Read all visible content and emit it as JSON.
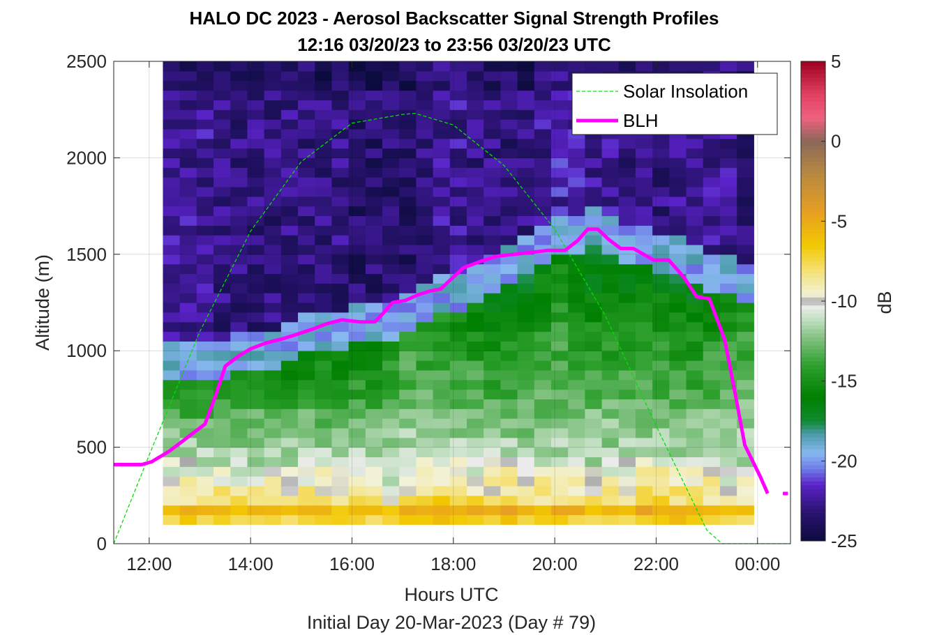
{
  "chart_data": {
    "type": "heatmap",
    "title": "HALO DC 2023 - Aerosol Backscatter Signal Strength Profiles",
    "subtitle": "12:16 03/20/23 to 23:56 03/20/23  UTC",
    "xlabel": "Hours UTC",
    "xlabel_note": "Initial Day 20-Mar-2023 (Day # 79)",
    "ylabel": "Altitude (m)",
    "colorbar_label": "dB",
    "x_axis": {
      "unit": "hours UTC",
      "range": [
        11.3,
        24.65
      ],
      "ticks": [
        12,
        14,
        16,
        18,
        20,
        22,
        24
      ],
      "tick_labels": [
        "12:00",
        "14:00",
        "16:00",
        "18:00",
        "20:00",
        "22:00",
        "00:00"
      ]
    },
    "y_axis": {
      "range": [
        0,
        2500
      ],
      "ticks": [
        0,
        500,
        1000,
        1500,
        2000,
        2500
      ],
      "tick_labels": [
        "0",
        "500",
        "1000",
        "1500",
        "2000",
        "2500"
      ]
    },
    "colorbar": {
      "range": [
        -25,
        5
      ],
      "ticks": [
        -25,
        -20,
        -15,
        -10,
        -5,
        0,
        5
      ],
      "tick_labels": [
        "-25",
        "-20",
        "-15",
        "-10",
        "-5",
        "0",
        "5"
      ],
      "colormap": [
        {
          "v": -25,
          "color": "#0b0b3d"
        },
        {
          "v": -23,
          "color": "#2e1478"
        },
        {
          "v": -21.5,
          "color": "#5a22c8"
        },
        {
          "v": -20.5,
          "color": "#6e7ae8"
        },
        {
          "v": -19.5,
          "color": "#88b8f0"
        },
        {
          "v": -18.3,
          "color": "#4a9aa8"
        },
        {
          "v": -17.5,
          "color": "#108a30"
        },
        {
          "v": -16,
          "color": "#008000"
        },
        {
          "v": -14,
          "color": "#2ea02e"
        },
        {
          "v": -12.5,
          "color": "#78bd78"
        },
        {
          "v": -11,
          "color": "#c8e2c8"
        },
        {
          "v": -10.3,
          "color": "#ececec"
        },
        {
          "v": -10,
          "color": "#a8a8a8"
        },
        {
          "v": -9.6,
          "color": "#f2f2d8"
        },
        {
          "v": -8,
          "color": "#f5e070"
        },
        {
          "v": -6.5,
          "color": "#f2c800"
        },
        {
          "v": -4.5,
          "color": "#e8a020"
        },
        {
          "v": -2,
          "color": "#b88840"
        },
        {
          "v": 0,
          "color": "#8a6858"
        },
        {
          "v": 1.5,
          "color": "#f06080"
        },
        {
          "v": 3,
          "color": "#e04060"
        },
        {
          "v": 5,
          "color": "#a00020"
        }
      ]
    },
    "grid": true,
    "legend": {
      "position": "top-right",
      "entries": [
        {
          "label": "Solar Insolation",
          "color": "#00ff00",
          "style": "dashed"
        },
        {
          "label": "BLH",
          "color": "#ff00ff",
          "style": "solid"
        }
      ]
    },
    "heatmap": {
      "x_start_hours": 12.27,
      "x_step_hours": 0.333,
      "columns": 35,
      "y_start_m": 100,
      "y_step_m": 50,
      "rows": 48,
      "values_note": "signal strength in dB, summarized per column as surface value, mid-layer value, boundary-layer top and free-troposphere value",
      "column_profiles": [
        {
          "surface": -6.5,
          "mid": -13.5,
          "top_m": 920,
          "free": -22.5
        },
        {
          "surface": -6.5,
          "mid": -13.5,
          "top_m": 920,
          "free": -22.5
        },
        {
          "surface": -6.5,
          "mid": -14,
          "top_m": 920,
          "free": -22.5
        },
        {
          "surface": -6.5,
          "mid": -14,
          "top_m": 920,
          "free": -23
        },
        {
          "surface": -7,
          "mid": -14,
          "top_m": 1000,
          "free": -23
        },
        {
          "surface": -7,
          "mid": -14,
          "top_m": 1000,
          "free": -23
        },
        {
          "surface": -7,
          "mid": -14.5,
          "top_m": 1000,
          "free": -23
        },
        {
          "surface": -7,
          "mid": -14.5,
          "top_m": 1050,
          "free": -23
        },
        {
          "surface": -6.5,
          "mid": -14.5,
          "top_m": 1100,
          "free": -23
        },
        {
          "surface": -6.5,
          "mid": -14.5,
          "top_m": 1100,
          "free": -23
        },
        {
          "surface": -7,
          "mid": -15,
          "top_m": 1100,
          "free": -23
        },
        {
          "surface": -7,
          "mid": -15,
          "top_m": 1150,
          "free": -23.5
        },
        {
          "surface": -7,
          "mid": -15,
          "top_m": 1150,
          "free": -23.5
        },
        {
          "surface": -7.5,
          "mid": -14,
          "top_m": 1150,
          "free": -23.5
        },
        {
          "surface": -6.5,
          "mid": -13,
          "top_m": 1200,
          "free": -23.5
        },
        {
          "surface": -6,
          "mid": -14,
          "top_m": 1250,
          "free": -23
        },
        {
          "surface": -6,
          "mid": -13.5,
          "top_m": 1300,
          "free": -22.5
        },
        {
          "surface": -6,
          "mid": -14,
          "top_m": 1300,
          "free": -22.5
        },
        {
          "surface": -6.5,
          "mid": -14.5,
          "top_m": 1350,
          "free": -23
        },
        {
          "surface": -6.5,
          "mid": -15.5,
          "top_m": 1400,
          "free": -23
        },
        {
          "surface": -6,
          "mid": -15.5,
          "top_m": 1450,
          "free": -23
        },
        {
          "surface": -7,
          "mid": -16,
          "top_m": 1500,
          "free": -23
        },
        {
          "surface": -6.5,
          "mid": -15,
          "top_m": 1550,
          "free": -22.5
        },
        {
          "surface": -6,
          "mid": -14.5,
          "top_m": 1600,
          "free": -22
        },
        {
          "surface": -6.5,
          "mid": -15.5,
          "top_m": 1600,
          "free": -22
        },
        {
          "surface": -7,
          "mid": -16,
          "top_m": 1650,
          "free": -22.5
        },
        {
          "surface": -7,
          "mid": -15.5,
          "top_m": 1600,
          "free": -22.5
        },
        {
          "surface": -6.5,
          "mid": -15.5,
          "top_m": 1550,
          "free": -23
        },
        {
          "surface": -6,
          "mid": -15,
          "top_m": 1550,
          "free": -23
        },
        {
          "surface": -6,
          "mid": -15,
          "top_m": 1500,
          "free": -23
        },
        {
          "surface": -6,
          "mid": -15.5,
          "top_m": 1500,
          "free": -22.5
        },
        {
          "surface": -6.5,
          "mid": -15.5,
          "top_m": 1450,
          "free": -22.5
        },
        {
          "surface": -6.5,
          "mid": -14.5,
          "top_m": 1400,
          "free": -22.5
        },
        {
          "surface": -7,
          "mid": -14,
          "top_m": 1400,
          "free": -22.5
        },
        {
          "surface": -7,
          "mid": -13.5,
          "top_m": 1350,
          "free": -23
        }
      ]
    },
    "series": [
      {
        "name": "BLH",
        "x": [
          11.3,
          11.85,
          12.05,
          12.4,
          12.75,
          13.1,
          13.3,
          13.5,
          13.75,
          14,
          14.3,
          14.6,
          14.85,
          15.2,
          15.5,
          15.8,
          16.15,
          16.45,
          16.6,
          16.8,
          17.05,
          17.3,
          17.55,
          17.75,
          17.95,
          18.2,
          18.5,
          18.85,
          19.2,
          19.55,
          19.85,
          20.2,
          20.45,
          20.65,
          20.85,
          21.05,
          21.3,
          21.55,
          21.95,
          22.25,
          22.55,
          22.8,
          23.05,
          23.35,
          23.55,
          23.75,
          24.05,
          24.2,
          24.3,
          24.5,
          24.6
        ],
        "y": [
          410,
          410,
          425,
          480,
          550,
          620,
          760,
          920,
          970,
          1010,
          1040,
          1060,
          1080,
          1110,
          1140,
          1160,
          1150,
          1150,
          1190,
          1250,
          1260,
          1290,
          1310,
          1320,
          1370,
          1430,
          1460,
          1490,
          1500,
          1510,
          1520,
          1520,
          1570,
          1630,
          1630,
          1580,
          1530,
          1530,
          1470,
          1470,
          1380,
          1280,
          1270,
          1060,
          790,
          510,
          350,
          260,
          null,
          260,
          260
        ]
      },
      {
        "name": "Solar Insolation",
        "peak_time_hours": 17.25,
        "peak_altitude_equiv_m": 2230,
        "x": [
          11.3,
          12,
          13,
          14,
          15,
          16,
          17,
          17.25,
          18,
          19,
          20,
          21,
          22,
          23,
          23.3,
          23.5,
          24,
          24.65
        ],
        "y": [
          0,
          460,
          1100,
          1620,
          1980,
          2180,
          2225,
          2230,
          2170,
          1960,
          1630,
          1180,
          610,
          70,
          0,
          0,
          0,
          0
        ]
      }
    ]
  }
}
